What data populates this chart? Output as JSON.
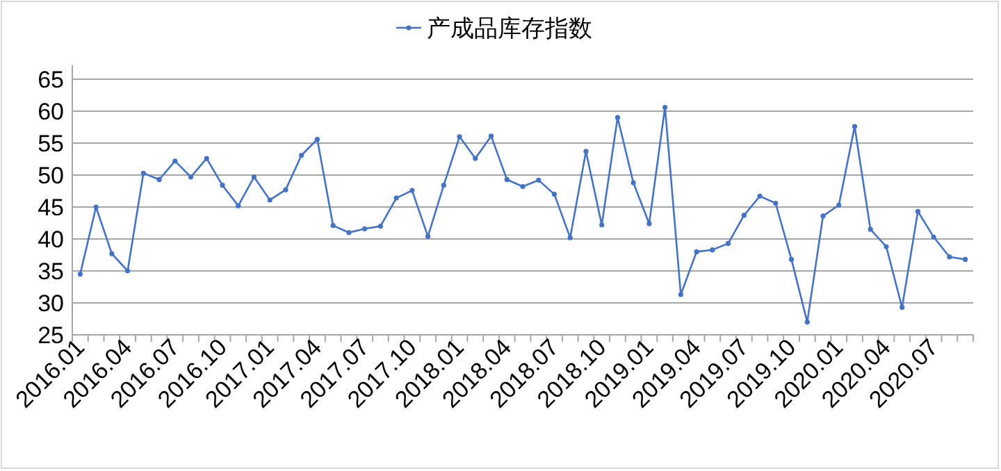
{
  "chart_data": {
    "type": "line",
    "categories": [
      "2016.01",
      null,
      null,
      "2016.04",
      null,
      null,
      "2016.07",
      null,
      null,
      "2016.10",
      null,
      null,
      "2017.01",
      null,
      null,
      "2017.04",
      null,
      null,
      "2017.07",
      null,
      null,
      "2017.10",
      null,
      null,
      "2018.01",
      null,
      null,
      "2018.04",
      null,
      null,
      "2018.07",
      null,
      null,
      "2018.10",
      null,
      null,
      "2019.01",
      null,
      null,
      "2019.04",
      null,
      null,
      "2019.07",
      null,
      null,
      "2019.10",
      null,
      null,
      "2020.01",
      null,
      null,
      "2020.04",
      null,
      null,
      "2020.07",
      null,
      null
    ],
    "series": [
      {
        "name": "产成品库存指数",
        "color": "#4472c4",
        "values": [
          34.5,
          45,
          37.7,
          35,
          50.3,
          49.3,
          52.2,
          49.7,
          52.6,
          48.4,
          45.2,
          49.7,
          46.1,
          47.7,
          53.1,
          55.6,
          42.1,
          41.0,
          41.6,
          42.0,
          46.4,
          47.6,
          40.4,
          48.4,
          56.0,
          52.6,
          56.1,
          49.3,
          48.2,
          49.2,
          47.0,
          40.2,
          53.7,
          42.2,
          59.0,
          48.8,
          42.4,
          60.6,
          31.3,
          38.0,
          38.3,
          39.3,
          43.7,
          46.7,
          45.6,
          36.8,
          27.0,
          43.6,
          45.3,
          57.6,
          41.5,
          38.8,
          29.3,
          44.3,
          40.3,
          37.2,
          36.8
        ]
      }
    ],
    "ylim": [
      25,
      65
    ],
    "yticks": [
      25,
      30,
      35,
      40,
      45,
      50,
      55,
      60,
      65
    ],
    "grid": "y",
    "legend": "top",
    "marker": "circle",
    "line_style": "solid"
  }
}
